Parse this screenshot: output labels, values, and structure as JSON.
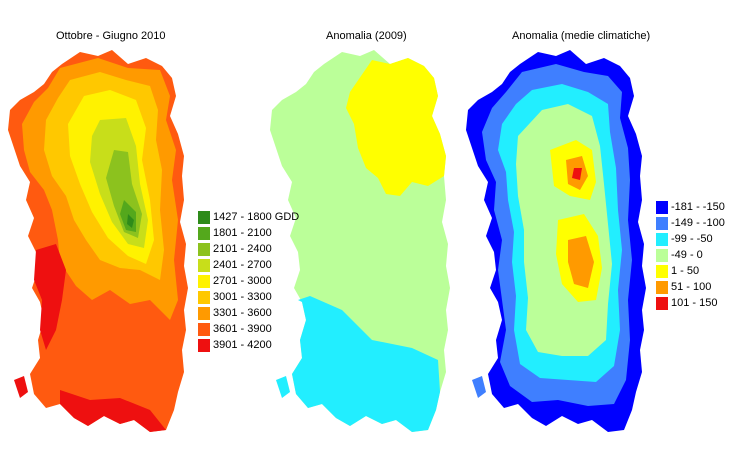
{
  "maps": [
    {
      "title": "Ottobre - Giugno 2010",
      "legend": [
        {
          "label": "1427 - 1800 GDD",
          "color": "#2e8b1a"
        },
        {
          "label": "1801 - 2100",
          "color": "#54a81c"
        },
        {
          "label": "2101 - 2400",
          "color": "#8cc21e"
        },
        {
          "label": "2401 - 2700",
          "color": "#c8de1a"
        },
        {
          "label": "2701 - 3000",
          "color": "#fff200"
        },
        {
          "label": "3001 - 3300",
          "color": "#ffc800"
        },
        {
          "label": "3301 - 3600",
          "color": "#ff9a00"
        },
        {
          "label": "3601 - 3900",
          "color": "#ff5a10"
        },
        {
          "label": "3901 - 4200",
          "color": "#ee1010"
        }
      ]
    },
    {
      "title": "Anomalia (2009)",
      "colors": {
        "south": "#22eeff",
        "center": "#bbff99",
        "north": "#ffff00"
      }
    },
    {
      "title": "Anomalia (medie climatiche)",
      "legend": [
        {
          "label": "-181 - -150",
          "color": "#0000ff"
        },
        {
          "label": "-149 - -100",
          "color": "#3f7fff"
        },
        {
          "label": "-99 - -50",
          "color": "#22eeff"
        },
        {
          "label": "-49 - 0",
          "color": "#bbff99"
        },
        {
          "label": "1 - 50",
          "color": "#ffff00"
        },
        {
          "label": "51 - 100",
          "color": "#ff9a00"
        },
        {
          "label": "101 - 150",
          "color": "#ee1010"
        }
      ]
    }
  ]
}
